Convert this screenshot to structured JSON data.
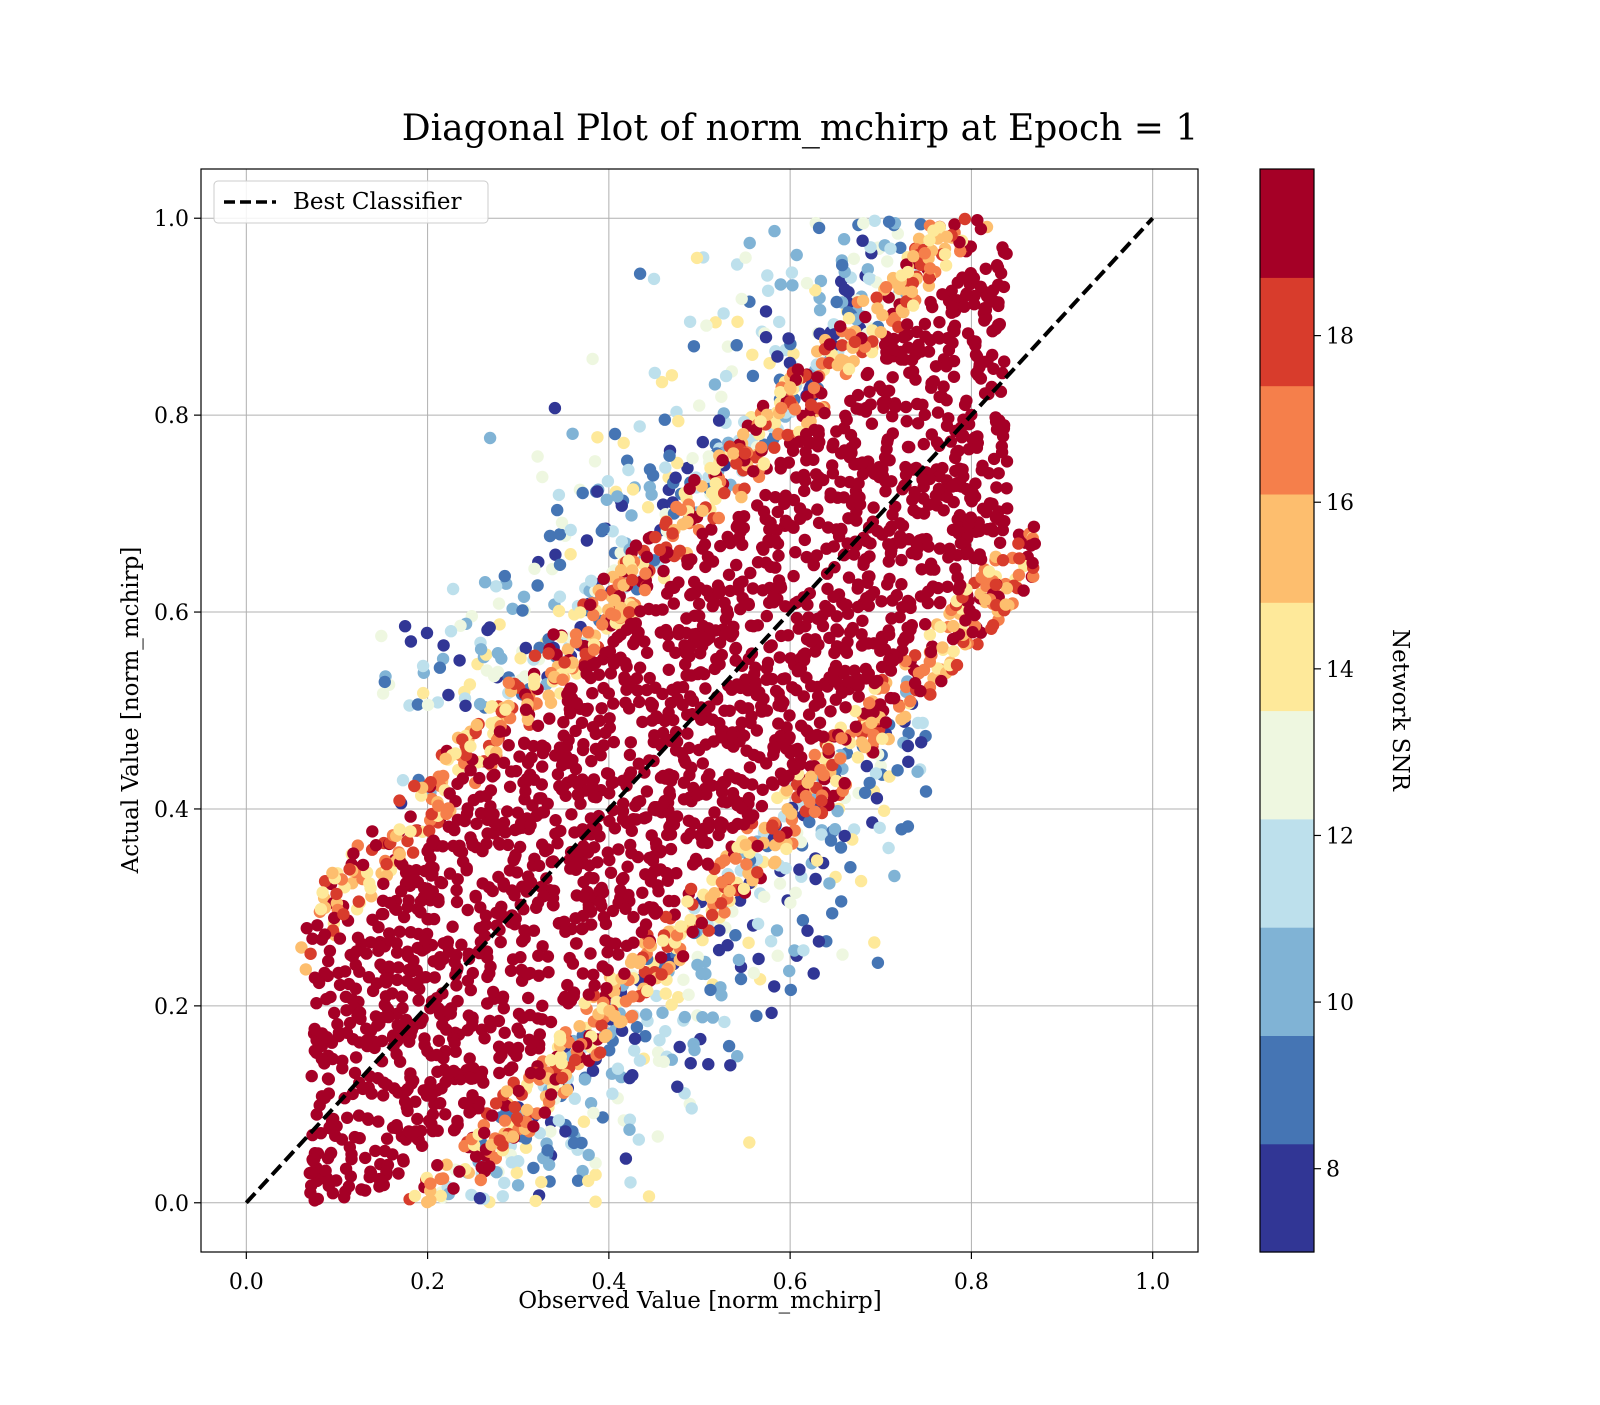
{
  "chart_data": {
    "type": "scatter",
    "title": "Diagonal Plot of norm_mchirp at Epoch = 1",
    "xlabel": "Observed Value [norm_mchirp]",
    "ylabel": "Actual Value [norm_mchirp]",
    "xlim": [
      -0.05,
      1.05
    ],
    "ylim": [
      -0.05,
      1.05
    ],
    "x_ticks": [
      "0.0",
      "0.2",
      "0.4",
      "0.6",
      "0.8",
      "1.0"
    ],
    "y_ticks": [
      "0.0",
      "0.2",
      "0.4",
      "0.6",
      "0.8",
      "1.0"
    ],
    "grid": true,
    "legend": {
      "position": "top-left",
      "entries": [
        {
          "label": "Best Classifier",
          "style": "dashed",
          "color": "#000000"
        }
      ]
    },
    "reference_line": {
      "name": "Best Classifier",
      "x": [
        0,
        1
      ],
      "y": [
        0,
        1
      ],
      "style": "dashed"
    },
    "colorbar": {
      "label": "Network SNR",
      "range": [
        7,
        20
      ],
      "ticks": [
        "8",
        "10",
        "12",
        "14",
        "16",
        "18"
      ],
      "tick_values": [
        8,
        10,
        12,
        14,
        16,
        18
      ],
      "colors": [
        "#313695",
        "#4575b4",
        "#80b3d5",
        "#bde0ec",
        "#eef7e0",
        "#fee99a",
        "#fdbe6e",
        "#f57f4b",
        "#d83c2c",
        "#a50026"
      ]
    },
    "point_cloud": {
      "description_x_range": [
        0.06,
        0.87
      ],
      "description_y_range": [
        0.0,
        1.0
      ],
      "core_snr": 19,
      "core_half_width": 0.17,
      "band_half_width": 0.24,
      "outlier_half_width": 0.3
    }
  }
}
